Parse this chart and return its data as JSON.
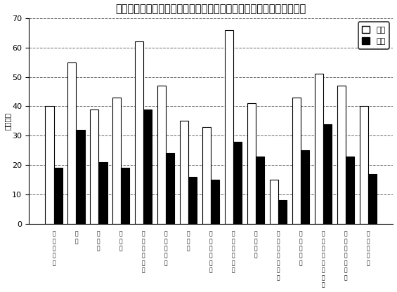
{
  "title": "第２図　産業別・男女別１人平均月間現金給与額（平成２０年平均）",
  "ylabel": "（万円）",
  "categories": [
    "調\n査\n産\n業\n計",
    "鉱\n業",
    "建\n設\n業",
    "製\n造\n業",
    "電\n気\n・\nガ\nス\n業",
    "情\n報\n通\n信\n業",
    "運\n輸\n業",
    "卸\n売\n・\n小\n売\n業",
    "金\n融\n・\n保\n険\n業",
    "不\n動\n産\n業",
    "飲\n食\n店\n・\n宿\n泊\n業",
    "医\n療\n・\n福\n祉",
    "教\n育\n・\n学\n習\n支\n援\n業",
    "複\n合\nサ\nー\nビ\nス\n業",
    "サ\nー\nビ\nス\n業"
  ],
  "male": [
    40,
    55,
    39,
    43,
    62,
    47,
    35,
    33,
    66,
    41,
    15,
    43,
    51,
    47,
    40
  ],
  "female": [
    19,
    32,
    21,
    19,
    39,
    24,
    16,
    15,
    28,
    23,
    8,
    25,
    34,
    23,
    17
  ],
  "male_color": "white",
  "female_color": "black",
  "bar_edge_color": "black",
  "ylim": [
    0,
    70
  ],
  "yticks": [
    0,
    10,
    20,
    30,
    40,
    50,
    60,
    70
  ],
  "grid_color": "black",
  "grid_style": "--",
  "grid_alpha": 0.6,
  "legend_labels": [
    "男子",
    "女子"
  ],
  "background_color": "white",
  "title_fontsize": 10.5,
  "bar_width": 0.38
}
